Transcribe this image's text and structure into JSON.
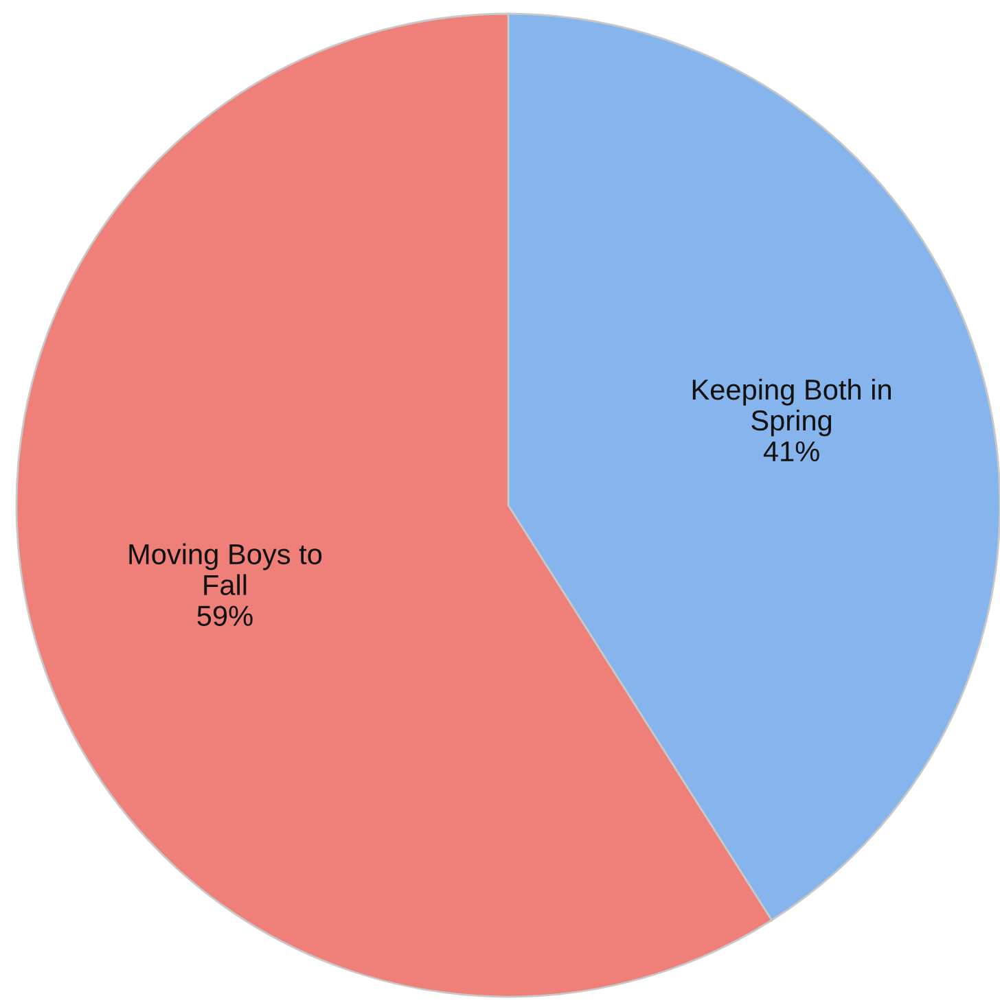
{
  "chart_data": {
    "type": "pie",
    "categories": [
      "Keeping Both in Spring",
      "Moving Boys to Fall"
    ],
    "values": [
      41,
      59
    ],
    "value_labels": [
      "41%",
      "59%"
    ],
    "colors": [
      "#86b4ec",
      "#ef8079"
    ],
    "legend": false
  }
}
